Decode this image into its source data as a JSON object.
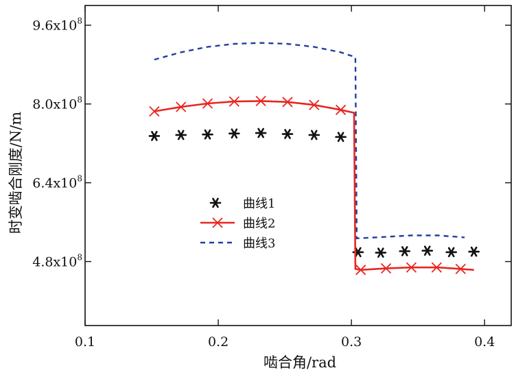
{
  "chart_data": {
    "type": "line",
    "title": "",
    "xlabel": "啮合角/rad",
    "ylabel": "时变啮合刚度/N/m",
    "xlim": [
      0.1,
      0.42
    ],
    "ylim": [
      3.5,
      10.0
    ],
    "x_ticks": [
      {
        "value": 0.1,
        "label": "0.1"
      },
      {
        "value": 0.2,
        "label": "0.2"
      },
      {
        "value": 0.3,
        "label": "0.3"
      },
      {
        "value": 0.4,
        "label": "0.4"
      }
    ],
    "y_ticks": [
      {
        "value": 4.8,
        "label": "4.8x10",
        "exp": "8"
      },
      {
        "value": 6.4,
        "label": "6.4x10",
        "exp": "8"
      },
      {
        "value": 8.0,
        "label": "8.0x10",
        "exp": "8"
      },
      {
        "value": 9.6,
        "label": "9.6x10",
        "exp": "8"
      }
    ],
    "series": [
      {
        "name": "曲线1",
        "style": "asterisk-markers",
        "color": "#111111",
        "points": [
          [
            0.152,
            7.35
          ],
          [
            0.172,
            7.37
          ],
          [
            0.192,
            7.38
          ],
          [
            0.212,
            7.4
          ],
          [
            0.232,
            7.41
          ],
          [
            0.252,
            7.39
          ],
          [
            0.272,
            7.37
          ],
          [
            0.292,
            7.33
          ],
          [
            0.305,
            4.99
          ],
          [
            0.322,
            4.98
          ],
          [
            0.34,
            5.01
          ],
          [
            0.357,
            5.02
          ],
          [
            0.375,
            4.99
          ],
          [
            0.392,
            5.0
          ]
        ]
      },
      {
        "name": "曲线2",
        "style": "line-x-markers",
        "color": "#e8261f",
        "points": [
          [
            0.152,
            7.85
          ],
          [
            0.172,
            7.94
          ],
          [
            0.192,
            8.01
          ],
          [
            0.212,
            8.05
          ],
          [
            0.232,
            8.06
          ],
          [
            0.252,
            8.04
          ],
          [
            0.272,
            7.98
          ],
          [
            0.292,
            7.88
          ],
          [
            0.302,
            7.82
          ],
          [
            0.303,
            4.65
          ],
          [
            0.307,
            4.63
          ],
          [
            0.325,
            4.66
          ],
          [
            0.345,
            4.68
          ],
          [
            0.365,
            4.68
          ],
          [
            0.382,
            4.65
          ],
          [
            0.392,
            4.63
          ]
        ],
        "marker_x": [
          0.152,
          0.172,
          0.192,
          0.212,
          0.232,
          0.252,
          0.272,
          0.292,
          0.307,
          0.326,
          0.345,
          0.364,
          0.382
        ]
      },
      {
        "name": "曲线3",
        "style": "dashed-line",
        "color": "#1f3f9e",
        "points": [
          [
            0.152,
            8.9
          ],
          [
            0.172,
            9.05
          ],
          [
            0.192,
            9.16
          ],
          [
            0.212,
            9.22
          ],
          [
            0.232,
            9.24
          ],
          [
            0.252,
            9.22
          ],
          [
            0.272,
            9.16
          ],
          [
            0.292,
            9.05
          ],
          [
            0.303,
            8.95
          ],
          [
            0.304,
            5.27
          ],
          [
            0.325,
            5.3
          ],
          [
            0.345,
            5.33
          ],
          [
            0.365,
            5.33
          ],
          [
            0.385,
            5.29
          ]
        ]
      }
    ],
    "legend": {
      "position": "center-left",
      "items": [
        {
          "name": "曲线1",
          "style": "asterisk-markers"
        },
        {
          "name": "曲线2",
          "style": "line-x-markers"
        },
        {
          "name": "曲线3",
          "style": "dashed-line"
        }
      ]
    },
    "grid": false
  }
}
